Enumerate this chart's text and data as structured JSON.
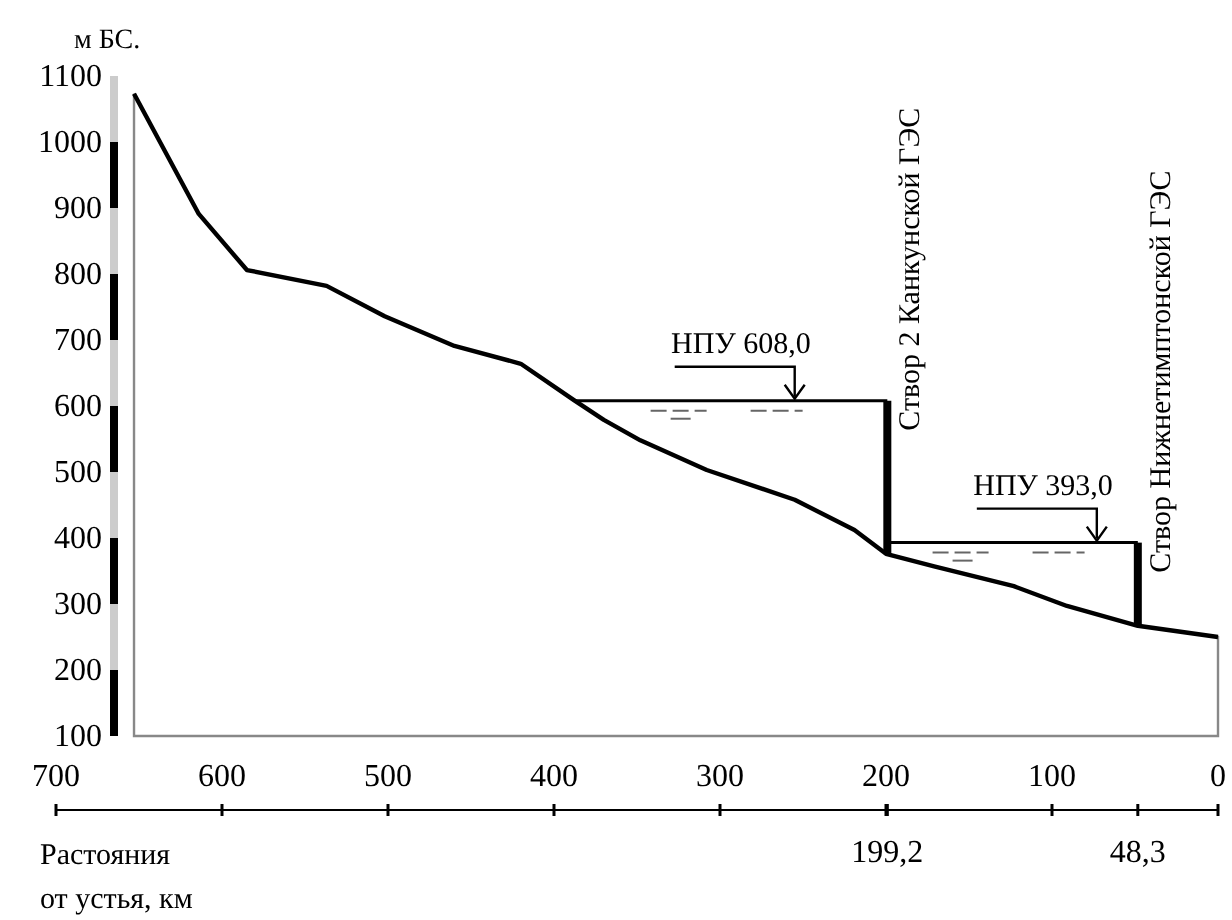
{
  "chart_data": {
    "type": "area",
    "ylabel": "м БС.",
    "xlabel": "Растояния от устья, км",
    "xlim": [
      700,
      0
    ],
    "ylim": [
      100,
      1100
    ],
    "xticks": [
      700,
      600,
      500,
      400,
      300,
      200,
      100,
      0
    ],
    "yticks": [
      100,
      200,
      300,
      400,
      500,
      600,
      700,
      800,
      900,
      1000,
      1100
    ],
    "series": [
      {
        "color": "#000000",
        "x": [
          653,
          614,
          585,
          537,
          502,
          460,
          420,
          388,
          370,
          348,
          308,
          255,
          219,
          200,
          171,
          123,
          91,
          48.3,
          0
        ],
        "values": [
          1073,
          891,
          806,
          782,
          736,
          691,
          664,
          609,
          579,
          548,
          503,
          458,
          412,
          376,
          357,
          327,
          297,
          267,
          250
        ]
      },
      {
        "type": "line",
        "color": "#000000",
        "x": [
          388,
          199.2
        ],
        "values": [
          608,
          608
        ]
      },
      {
        "type": "line",
        "color": "#000000",
        "x": [
          199.2,
          48.3
        ],
        "values": [
          393,
          393
        ]
      },
      {
        "type": "line",
        "color": "#000000",
        "name": "Створ 2 Канкунской ГЭС",
        "x": [
          199.2,
          199.2
        ],
        "values": [
          376,
          608
        ]
      },
      {
        "type": "line",
        "color": "#000000",
        "name": "Створ Нижнетимптонской ГЭС",
        "x": [
          48.3,
          48.3
        ],
        "values": [
          267,
          393
        ]
      }
    ],
    "annotations": [
      {
        "text": "НПУ 608,0",
        "x": 255,
        "y": 608
      },
      {
        "text": "НПУ 393,0",
        "x": 73,
        "y": 393
      },
      {
        "text": "199,2",
        "x": 199.2
      },
      {
        "text": "48,3",
        "x": 48.3
      }
    ]
  }
}
